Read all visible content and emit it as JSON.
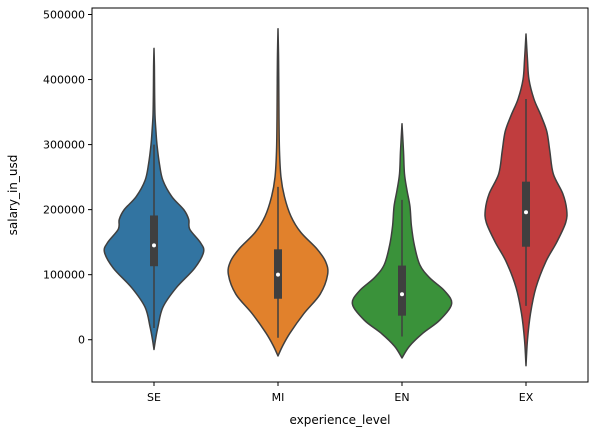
{
  "chart_data": {
    "type": "violin",
    "xlabel": "experience_level",
    "ylabel": "salary_in_usd",
    "ylim": [
      -65000,
      510000
    ],
    "yticks": [
      0,
      100000,
      200000,
      300000,
      400000,
      500000
    ],
    "ytick_labels": [
      "0",
      "100000",
      "200000",
      "300000",
      "400000",
      "500000"
    ],
    "grid": false,
    "categories": [
      "SE",
      "MI",
      "EN",
      "EX"
    ],
    "colors": [
      "#3274a1",
      "#e1812c",
      "#3a923a",
      "#c03d3e"
    ],
    "violins": [
      {
        "category": "SE",
        "range": [
          -15000,
          448000
        ],
        "q1": 113000,
        "median": 145000,
        "q3": 191000,
        "whisker_low": 18000,
        "whisker_high": 300000,
        "profile": [
          [
            -15000,
            0
          ],
          [
            0,
            0.03
          ],
          [
            20000,
            0.08
          ],
          [
            50000,
            0.18
          ],
          [
            80000,
            0.45
          ],
          [
            110000,
            0.82
          ],
          [
            135000,
            1.0
          ],
          [
            150000,
            0.93
          ],
          [
            170000,
            0.72
          ],
          [
            185000,
            0.7
          ],
          [
            200000,
            0.6
          ],
          [
            220000,
            0.36
          ],
          [
            245000,
            0.18
          ],
          [
            270000,
            0.11
          ],
          [
            300000,
            0.06
          ],
          [
            320000,
            0.04
          ],
          [
            345000,
            0.02
          ],
          [
            380000,
            0.012
          ],
          [
            420000,
            0.008
          ],
          [
            448000,
            0.0
          ]
        ]
      },
      {
        "category": "MI",
        "range": [
          -25000,
          478000
        ],
        "q1": 63000,
        "median": 100000,
        "q3": 139000,
        "whisker_low": 3000,
        "whisker_high": 235000,
        "profile": [
          [
            -25000,
            0
          ],
          [
            -10000,
            0.09
          ],
          [
            10000,
            0.24
          ],
          [
            40000,
            0.52
          ],
          [
            70000,
            0.85
          ],
          [
            100000,
            1.0
          ],
          [
            120000,
            0.96
          ],
          [
            140000,
            0.78
          ],
          [
            165000,
            0.46
          ],
          [
            190000,
            0.26
          ],
          [
            220000,
            0.13
          ],
          [
            250000,
            0.06
          ],
          [
            290000,
            0.03
          ],
          [
            340000,
            0.02
          ],
          [
            400000,
            0.015
          ],
          [
            440000,
            0.01
          ],
          [
            478000,
            0.0
          ]
        ]
      },
      {
        "category": "EN",
        "range": [
          -28000,
          332000
        ],
        "q1": 37000,
        "median": 70000,
        "q3": 114000,
        "whisker_low": 5000,
        "whisker_high": 215000,
        "profile": [
          [
            -28000,
            0
          ],
          [
            -10000,
            0.15
          ],
          [
            10000,
            0.42
          ],
          [
            30000,
            0.76
          ],
          [
            55000,
            1.0
          ],
          [
            75000,
            0.86
          ],
          [
            95000,
            0.56
          ],
          [
            115000,
            0.36
          ],
          [
            145000,
            0.25
          ],
          [
            175000,
            0.19
          ],
          [
            205000,
            0.16
          ],
          [
            230000,
            0.1
          ],
          [
            255000,
            0.05
          ],
          [
            290000,
            0.03
          ],
          [
            332000,
            0.0
          ]
        ]
      },
      {
        "category": "EX",
        "range": [
          -40000,
          470000
        ],
        "q1": 143000,
        "median": 196000,
        "q3": 243000,
        "whisker_low": 52000,
        "whisker_high": 370000,
        "profile": [
          [
            -40000,
            0
          ],
          [
            0,
            0.03
          ],
          [
            40000,
            0.09
          ],
          [
            80000,
            0.2
          ],
          [
            120000,
            0.4
          ],
          [
            150000,
            0.62
          ],
          [
            180000,
            0.8
          ],
          [
            200000,
            0.82
          ],
          [
            225000,
            0.74
          ],
          [
            255000,
            0.55
          ],
          [
            290000,
            0.48
          ],
          [
            320000,
            0.42
          ],
          [
            345000,
            0.3
          ],
          [
            370000,
            0.16
          ],
          [
            400000,
            0.06
          ],
          [
            430000,
            0.03
          ],
          [
            470000,
            0.0
          ]
        ]
      }
    ]
  }
}
